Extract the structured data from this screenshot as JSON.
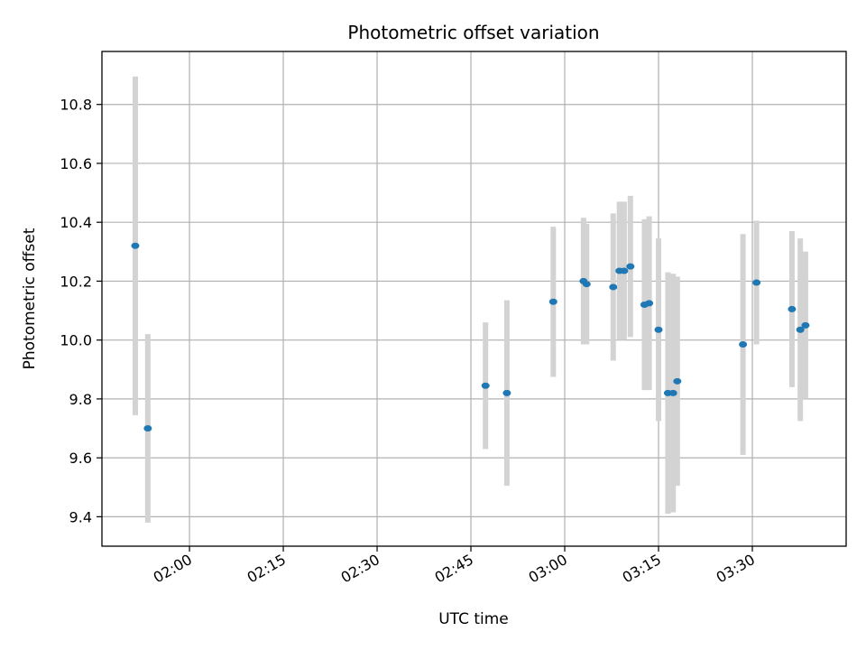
{
  "chart_data": {
    "type": "scatter",
    "title": "Photometric offset variation",
    "xlabel": "UTC time",
    "ylabel": "Photometric offset",
    "x_unit": "UTC time (HH:MM)",
    "xlim": [
      "01:46",
      "03:45"
    ],
    "ylim": [
      9.3,
      10.98
    ],
    "x_ticks": [
      "02:00",
      "02:15",
      "02:30",
      "02:45",
      "03:00",
      "03:15",
      "03:30"
    ],
    "y_ticks": [
      9.4,
      9.6,
      9.8,
      10.0,
      10.2,
      10.4,
      10.6,
      10.8
    ],
    "grid": true,
    "marker_color": "#1f77b4",
    "errorbar_color": "#d3d3d3",
    "points": [
      {
        "x": "01:51:20",
        "y": 10.32,
        "err": 0.575
      },
      {
        "x": "01:53:20",
        "y": 9.7,
        "err": 0.32
      },
      {
        "x": "02:47:20",
        "y": 9.845,
        "err": 0.215
      },
      {
        "x": "02:50:45",
        "y": 9.82,
        "err": 0.315
      },
      {
        "x": "02:58:10",
        "y": 10.13,
        "err": 0.255
      },
      {
        "x": "03:03:00",
        "y": 10.2,
        "err": 0.215
      },
      {
        "x": "03:03:30",
        "y": 10.19,
        "err": 0.205
      },
      {
        "x": "03:07:45",
        "y": 10.18,
        "err": 0.25
      },
      {
        "x": "03:08:45",
        "y": 10.235,
        "err": 0.235
      },
      {
        "x": "03:09:30",
        "y": 10.235,
        "err": 0.235
      },
      {
        "x": "03:10:30",
        "y": 10.25,
        "err": 0.24
      },
      {
        "x": "03:12:45",
        "y": 10.12,
        "err": 0.29
      },
      {
        "x": "03:13:30",
        "y": 10.125,
        "err": 0.295
      },
      {
        "x": "03:15:00",
        "y": 10.035,
        "err": 0.31
      },
      {
        "x": "03:16:30",
        "y": 9.82,
        "err": 0.41
      },
      {
        "x": "03:17:20",
        "y": 9.82,
        "err": 0.405
      },
      {
        "x": "03:18:00",
        "y": 9.86,
        "err": 0.355
      },
      {
        "x": "03:28:30",
        "y": 9.985,
        "err": 0.375
      },
      {
        "x": "03:30:40",
        "y": 10.195,
        "err": 0.21
      },
      {
        "x": "03:36:20",
        "y": 10.105,
        "err": 0.265
      },
      {
        "x": "03:37:40",
        "y": 10.035,
        "err": 0.31
      },
      {
        "x": "03:38:30",
        "y": 10.05,
        "err": 0.25
      }
    ]
  }
}
